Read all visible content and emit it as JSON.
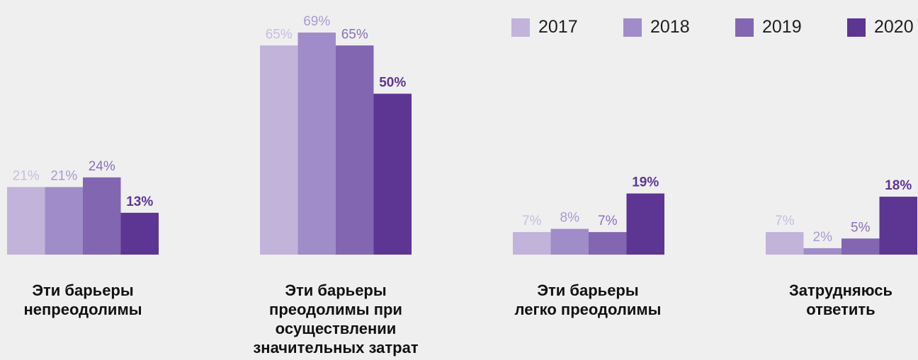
{
  "chart_data": {
    "type": "bar",
    "categories": [
      "Эти барьеры\nнепреодолимы",
      "Эти барьеры\nпреодолимы при\nосуществлении\nзначительных затрат",
      "Эти барьеры\nлегко преодолимы",
      "Затрудняюсь\nответить"
    ],
    "series": [
      {
        "name": "2017",
        "values": [
          21,
          65,
          7,
          7
        ],
        "color": "#c2b3da"
      },
      {
        "name": "2018",
        "values": [
          21,
          69,
          8,
          2
        ],
        "color": "#a08cc8"
      },
      {
        "name": "2019",
        "values": [
          24,
          65,
          7,
          5
        ],
        "color": "#8266b1"
      },
      {
        "name": "2020",
        "values": [
          13,
          50,
          19,
          18
        ],
        "color": "#5d3592"
      }
    ],
    "value_suffix": "%",
    "legend_position": "top-right",
    "ylim": [
      0,
      69
    ],
    "grid": false
  }
}
